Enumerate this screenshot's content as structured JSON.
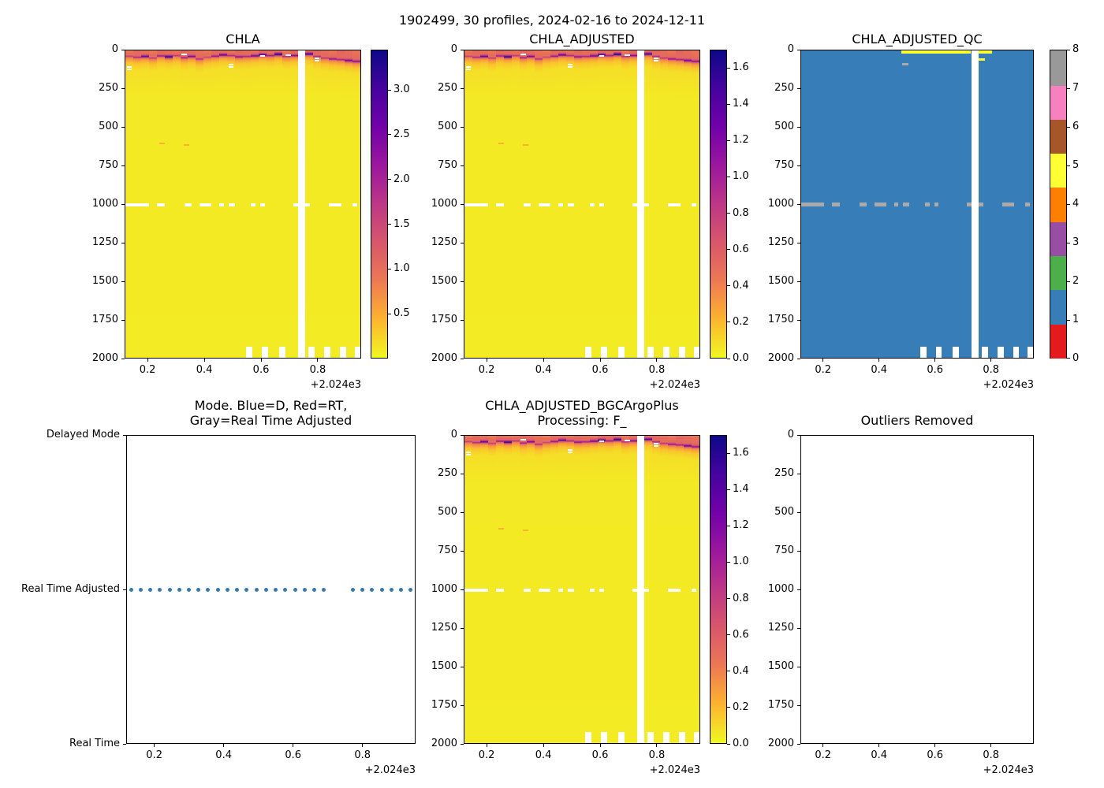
{
  "figure_title": "1902499, 30 profiles, 2024-02-16 to 2024-12-11",
  "x_axis": {
    "tick_values": [
      0.2,
      0.4,
      0.6,
      0.8
    ],
    "tick_labels": [
      "0.2",
      "0.4",
      "0.6",
      "0.8"
    ],
    "offset_label": "+2.024e3",
    "data_range": [
      0.119,
      0.953
    ]
  },
  "depth_axis": {
    "tick_values": [
      0,
      250,
      500,
      750,
      1000,
      1250,
      1500,
      1750,
      2000
    ],
    "tick_labels": [
      "0",
      "250",
      "500",
      "750",
      "1000",
      "1250",
      "1500",
      "1750",
      "2000"
    ],
    "range": [
      0,
      2000
    ]
  },
  "panels": {
    "chla": {
      "title": "CHLA",
      "colorbar": {
        "vmin": 0,
        "vmax": 3.45,
        "tick_values": [
          0.5,
          1.0,
          1.5,
          2.0,
          2.5,
          3.0
        ],
        "tick_labels": [
          "0.5",
          "1.0",
          "1.5",
          "2.0",
          "2.5",
          "3.0"
        ],
        "colormap": "plasma_r"
      }
    },
    "chla_adjusted": {
      "title": "CHLA_ADJUSTED",
      "colorbar": {
        "vmin": 0,
        "vmax": 1.7,
        "tick_values": [
          0.0,
          0.2,
          0.4,
          0.6,
          0.8,
          1.0,
          1.2,
          1.4,
          1.6
        ],
        "tick_labels": [
          "0.0",
          "0.2",
          "0.4",
          "0.6",
          "0.8",
          "1.0",
          "1.2",
          "1.4",
          "1.6"
        ],
        "colormap": "plasma_r"
      }
    },
    "chla_adjusted_qc": {
      "title": "CHLA_ADJUSTED_QC",
      "colorbar": {
        "type": "discrete",
        "tick_values": [
          0,
          1,
          2,
          3,
          4,
          5,
          6,
          7,
          8
        ],
        "tick_labels": [
          "0",
          "1",
          "2",
          "3",
          "4",
          "5",
          "6",
          "7",
          "8"
        ],
        "colors": [
          "#e41a1c",
          "#377eb8",
          "#4daf4a",
          "#984ea3",
          "#ff7f00",
          "#ffff33",
          "#a65628",
          "#f781bf",
          "#999999"
        ]
      }
    },
    "mode": {
      "title_line1": "Mode. Blue=D, Red=RT,",
      "title_line2": "Gray=Real Time Adjusted",
      "y_tick_labels": [
        "Delayed Mode",
        "Real Time Adjusted",
        "Real Time"
      ]
    },
    "bgc": {
      "title_line1": "CHLA_ADJUSTED_BGCArgoPlus",
      "title_line2": "Processing: F_"
    },
    "outliers": {
      "title": "Outliers Removed"
    }
  },
  "colors": {
    "qc_blue": "#377eb8",
    "qc_yellow": "#ffff33",
    "qc_gray": "#aaaaaa",
    "mode_dot_blue": "#3579b1",
    "missing_white": "#ffffff",
    "anomaly_orange": "#fca636"
  },
  "chart_data": {
    "shared": {
      "n_profiles": 30,
      "x_range_decimal_year": [
        2024.119,
        2024.953
      ],
      "depth_range_m": [
        0,
        2000
      ],
      "missing_profile_index": 22,
      "surface_profiles": [
        {
          "peak": 1.7,
          "peak_depth": 38
        },
        {
          "peak": 2.0,
          "peak_depth": 45
        },
        {
          "peak": 2.9,
          "peak_depth": 40
        },
        {
          "peak": 1.7,
          "peak_depth": 50
        },
        {
          "peak": 2.2,
          "peak_depth": 36
        },
        {
          "peak": 3.3,
          "peak_depth": 42
        },
        {
          "peak": 1.8,
          "peak_depth": 34
        },
        {
          "peak": 2.1,
          "peak_depth": 48
        },
        {
          "peak": 2.6,
          "peak_depth": 40
        },
        {
          "peak": 1.9,
          "peak_depth": 56
        },
        {
          "peak": 1.6,
          "peak_depth": 44
        },
        {
          "peak": 2.3,
          "peak_depth": 38
        },
        {
          "peak": 2.9,
          "peak_depth": 30
        },
        {
          "peak": 2.0,
          "peak_depth": 34
        },
        {
          "peak": 2.4,
          "peak_depth": 42
        },
        {
          "peak": 2.1,
          "peak_depth": 40
        },
        {
          "peak": 2.7,
          "peak_depth": 36
        },
        {
          "peak": 3.2,
          "peak_depth": 30
        },
        {
          "peak": 2.2,
          "peak_depth": 34
        },
        {
          "peak": 3.4,
          "peak_depth": 26
        },
        {
          "peak": 1.9,
          "peak_depth": 40
        },
        {
          "peak": 2.5,
          "peak_depth": 34
        },
        null,
        {
          "peak": 3.1,
          "peak_depth": 24
        },
        {
          "peak": 2.0,
          "peak_depth": 40
        },
        {
          "peak": 1.8,
          "peak_depth": 50
        },
        {
          "peak": 2.3,
          "peak_depth": 56
        },
        {
          "peak": 2.1,
          "peak_depth": 60
        },
        {
          "peak": 2.8,
          "peak_depth": 66
        },
        {
          "peak": 2.4,
          "peak_depth": 72
        }
      ],
      "missing_1000m_segments": [
        [
          0,
          3
        ],
        [
          4,
          5
        ],
        [
          7.5,
          8.5
        ],
        [
          9.5,
          11
        ],
        [
          12,
          12.6
        ],
        [
          13.2,
          14
        ],
        [
          16,
          16.6
        ],
        [
          17.2,
          17.8
        ],
        [
          21.4,
          22.6
        ],
        [
          23,
          23.6
        ],
        [
          26,
          27.6
        ],
        [
          29,
          29.6
        ]
      ],
      "bottom_missing_segments": [
        [
          15.4,
          16.2
        ],
        [
          17.4,
          18.2
        ],
        [
          19.6,
          20.4
        ],
        [
          23.4,
          24.2
        ],
        [
          25.4,
          26.2
        ],
        [
          27.4,
          28.2
        ],
        [
          29.3,
          30
        ]
      ],
      "surface_missing_dashes": [
        {
          "col": 0,
          "depth": 108
        },
        {
          "col": 0,
          "depth": 122
        },
        {
          "col": 7,
          "depth": 28
        },
        {
          "col": 13,
          "depth": 92
        },
        {
          "col": 13,
          "depth": 106
        },
        {
          "col": 17,
          "depth": 36
        },
        {
          "col": 24,
          "depth": 52
        },
        {
          "col": 24,
          "depth": 66
        },
        {
          "col": 20.3,
          "depth": 30
        }
      ],
      "deep_anomalies": [
        {
          "col": 4.3,
          "depth": 600
        },
        {
          "col": 7.4,
          "depth": 612
        }
      ]
    },
    "panels": [
      {
        "id": "chla",
        "type": "heatmap",
        "colormap": "plasma_r",
        "vmin": 0,
        "vmax": 3.45,
        "background_value": 0.1,
        "note": "30 profile columns, yellow ~0.1 field, surface bloom band 0-120 m"
      },
      {
        "id": "chla_adjusted",
        "type": "heatmap",
        "colormap": "plasma_r",
        "vmin": 0,
        "vmax": 1.7,
        "scale_factor_vs_chla": 0.49
      },
      {
        "id": "chla_adjusted_qc",
        "type": "heatmap",
        "constant_value": 1,
        "qc_marks": {
          "yellow_top_segments": [
            [
              13,
              21.9
            ],
            [
              23,
              24.7
            ]
          ],
          "yellow_sub_dashes": [
            {
              "cols": [
                23.0,
                23.8
              ],
              "depth_m": 55
            }
          ],
          "gray_dashes": [
            {
              "cols": [
                13.1,
                13.9
              ],
              "depth_m": 85
            }
          ],
          "gray_1000m_dashes": "same segments as missing_1000m_segments, value 8"
        }
      },
      {
        "id": "mode",
        "type": "scatter",
        "y_value_all_points": "Real Time Adjusted",
        "skip_profiles": [
          21,
          22
        ]
      },
      {
        "id": "bgc",
        "type": "heatmap",
        "colormap": "plasma_r",
        "vmin": 0,
        "vmax": 1.7
      },
      {
        "id": "outliers",
        "type": "empty",
        "ylim": [
          0,
          2000
        ]
      }
    ]
  }
}
